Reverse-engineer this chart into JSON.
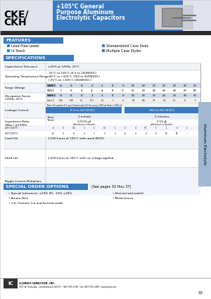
{
  "title_model": "CKE/\nCKH",
  "title_desc": "+105°C General\nPurpose Aluminum\nElectrolytic Capacitors",
  "header_bg": "#3a7abf",
  "header_light_bg": "#d0d8e8",
  "features_title": "FEATURES",
  "features_left": [
    "Lead Free Leads",
    "In Stock"
  ],
  "features_right": [
    "Standardized Case Sizes",
    "Multiple Case Styles"
  ],
  "specs_title": "SPECIFICATIONS",
  "special_order_title": "SPECIAL ORDER OPTIONS",
  "special_order_ref": "(See pages 30 thru 37)",
  "special_order_left": [
    "Special tolerances: ±10% (K), -10% ±20%",
    "Ammo Pack",
    "Cut, Formed, Cut and Formed Leads"
  ],
  "special_order_right": [
    "Sleeved and sealed",
    "Metal sleeve"
  ],
  "footer_text": "ILLINOIS CAPACITOR, INC.   3757 W. Touhy Ave., Lincolnwood, IL 60712 • (847) 675-1760 • Fax (847) 675-2050 • www.illcap.com",
  "page_number": "53",
  "side_label": "Aluminum Electrolytic",
  "bg_color": "#ffffff",
  "table_header_bg": "#4a7fba",
  "row_alt_bg": "#e8eef5",
  "border_color": "#333333"
}
